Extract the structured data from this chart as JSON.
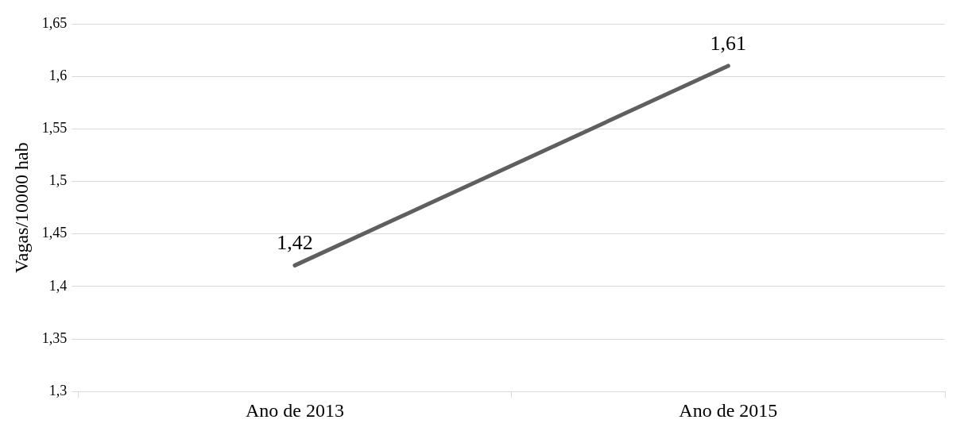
{
  "chart_data": {
    "type": "line",
    "ylabel": "Vagas/10000 hab",
    "categories": [
      "Ano de 2013",
      "Ano de 2015"
    ],
    "series": [
      {
        "color": "#5f5f5f",
        "values": [
          1.42,
          1.61
        ],
        "value_labels": [
          "1,42",
          "1,61"
        ]
      }
    ],
    "ylim": [
      1.3,
      1.65
    ],
    "yticks": [
      {
        "value": 1.3,
        "label": "1,3"
      },
      {
        "value": 1.35,
        "label": "1,35"
      },
      {
        "value": 1.4,
        "label": "1,4"
      },
      {
        "value": 1.45,
        "label": "1,45"
      },
      {
        "value": 1.5,
        "label": "1,5"
      },
      {
        "value": 1.55,
        "label": "1,55"
      },
      {
        "value": 1.6,
        "label": "1,6"
      },
      {
        "value": 1.65,
        "label": "1,65"
      }
    ],
    "grid": "y",
    "legend": false,
    "marker": "none",
    "line_style": "solid"
  }
}
